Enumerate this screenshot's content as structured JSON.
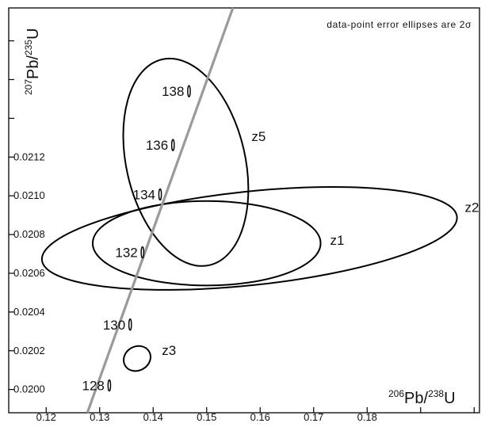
{
  "chart_data": {
    "type": "scatter",
    "title": "",
    "annotation": "data-point error ellipses are 2σ",
    "xlabel": {
      "sup1": "206",
      "main1": "Pb/",
      "sup2": "238",
      "main2": "U"
    },
    "ylabel": {
      "sup1": "207",
      "main1": "Pb/",
      "sup2": "235",
      "main2": "U"
    },
    "xlim": [
      0.113,
      0.201
    ],
    "ylim": [
      0.01988,
      0.02197
    ],
    "x_ticks": [
      "0.12",
      "0.13",
      "0.14",
      "0.15",
      "0.16",
      "0.17",
      "0.18"
    ],
    "y_ticks": [
      "0.0200",
      "0.0202",
      "0.0204",
      "0.0206",
      "0.0208",
      "0.0210",
      "0.0212"
    ],
    "grid": false,
    "concordia": {
      "line_from": [
        0.1277,
        0.01988
      ],
      "line_to": [
        0.1549,
        0.02197
      ],
      "age_markers": [
        {
          "label": "128",
          "x": 0.1318,
          "y": 0.020021
        },
        {
          "label": "130",
          "x": 0.1357,
          "y": 0.020335
        },
        {
          "label": "132",
          "x": 0.138,
          "y": 0.020708
        },
        {
          "label": "134",
          "x": 0.1413,
          "y": 0.021007
        },
        {
          "label": "136",
          "x": 0.1437,
          "y": 0.021262
        },
        {
          "label": "138",
          "x": 0.1467,
          "y": 0.02154
        }
      ]
    },
    "series": [
      {
        "name": "z5",
        "cx": 0.1461,
        "cy": 0.021173,
        "rx": 0.0111,
        "ry": 0.000545,
        "rotation": -13
      },
      {
        "name": "z2",
        "cx": 0.158,
        "cy": 0.02078,
        "rx": 0.039,
        "ry": 0.000242,
        "rotation": -6
      },
      {
        "name": "z1",
        "cx": 0.15,
        "cy": 0.020755,
        "rx": 0.0213,
        "ry": 0.000218,
        "rotation": 0
      },
      {
        "name": "z3",
        "cx": 0.137,
        "cy": 0.02016,
        "rx": 0.0026,
        "ry": 6.2e-05,
        "rotation": -30
      }
    ]
  }
}
